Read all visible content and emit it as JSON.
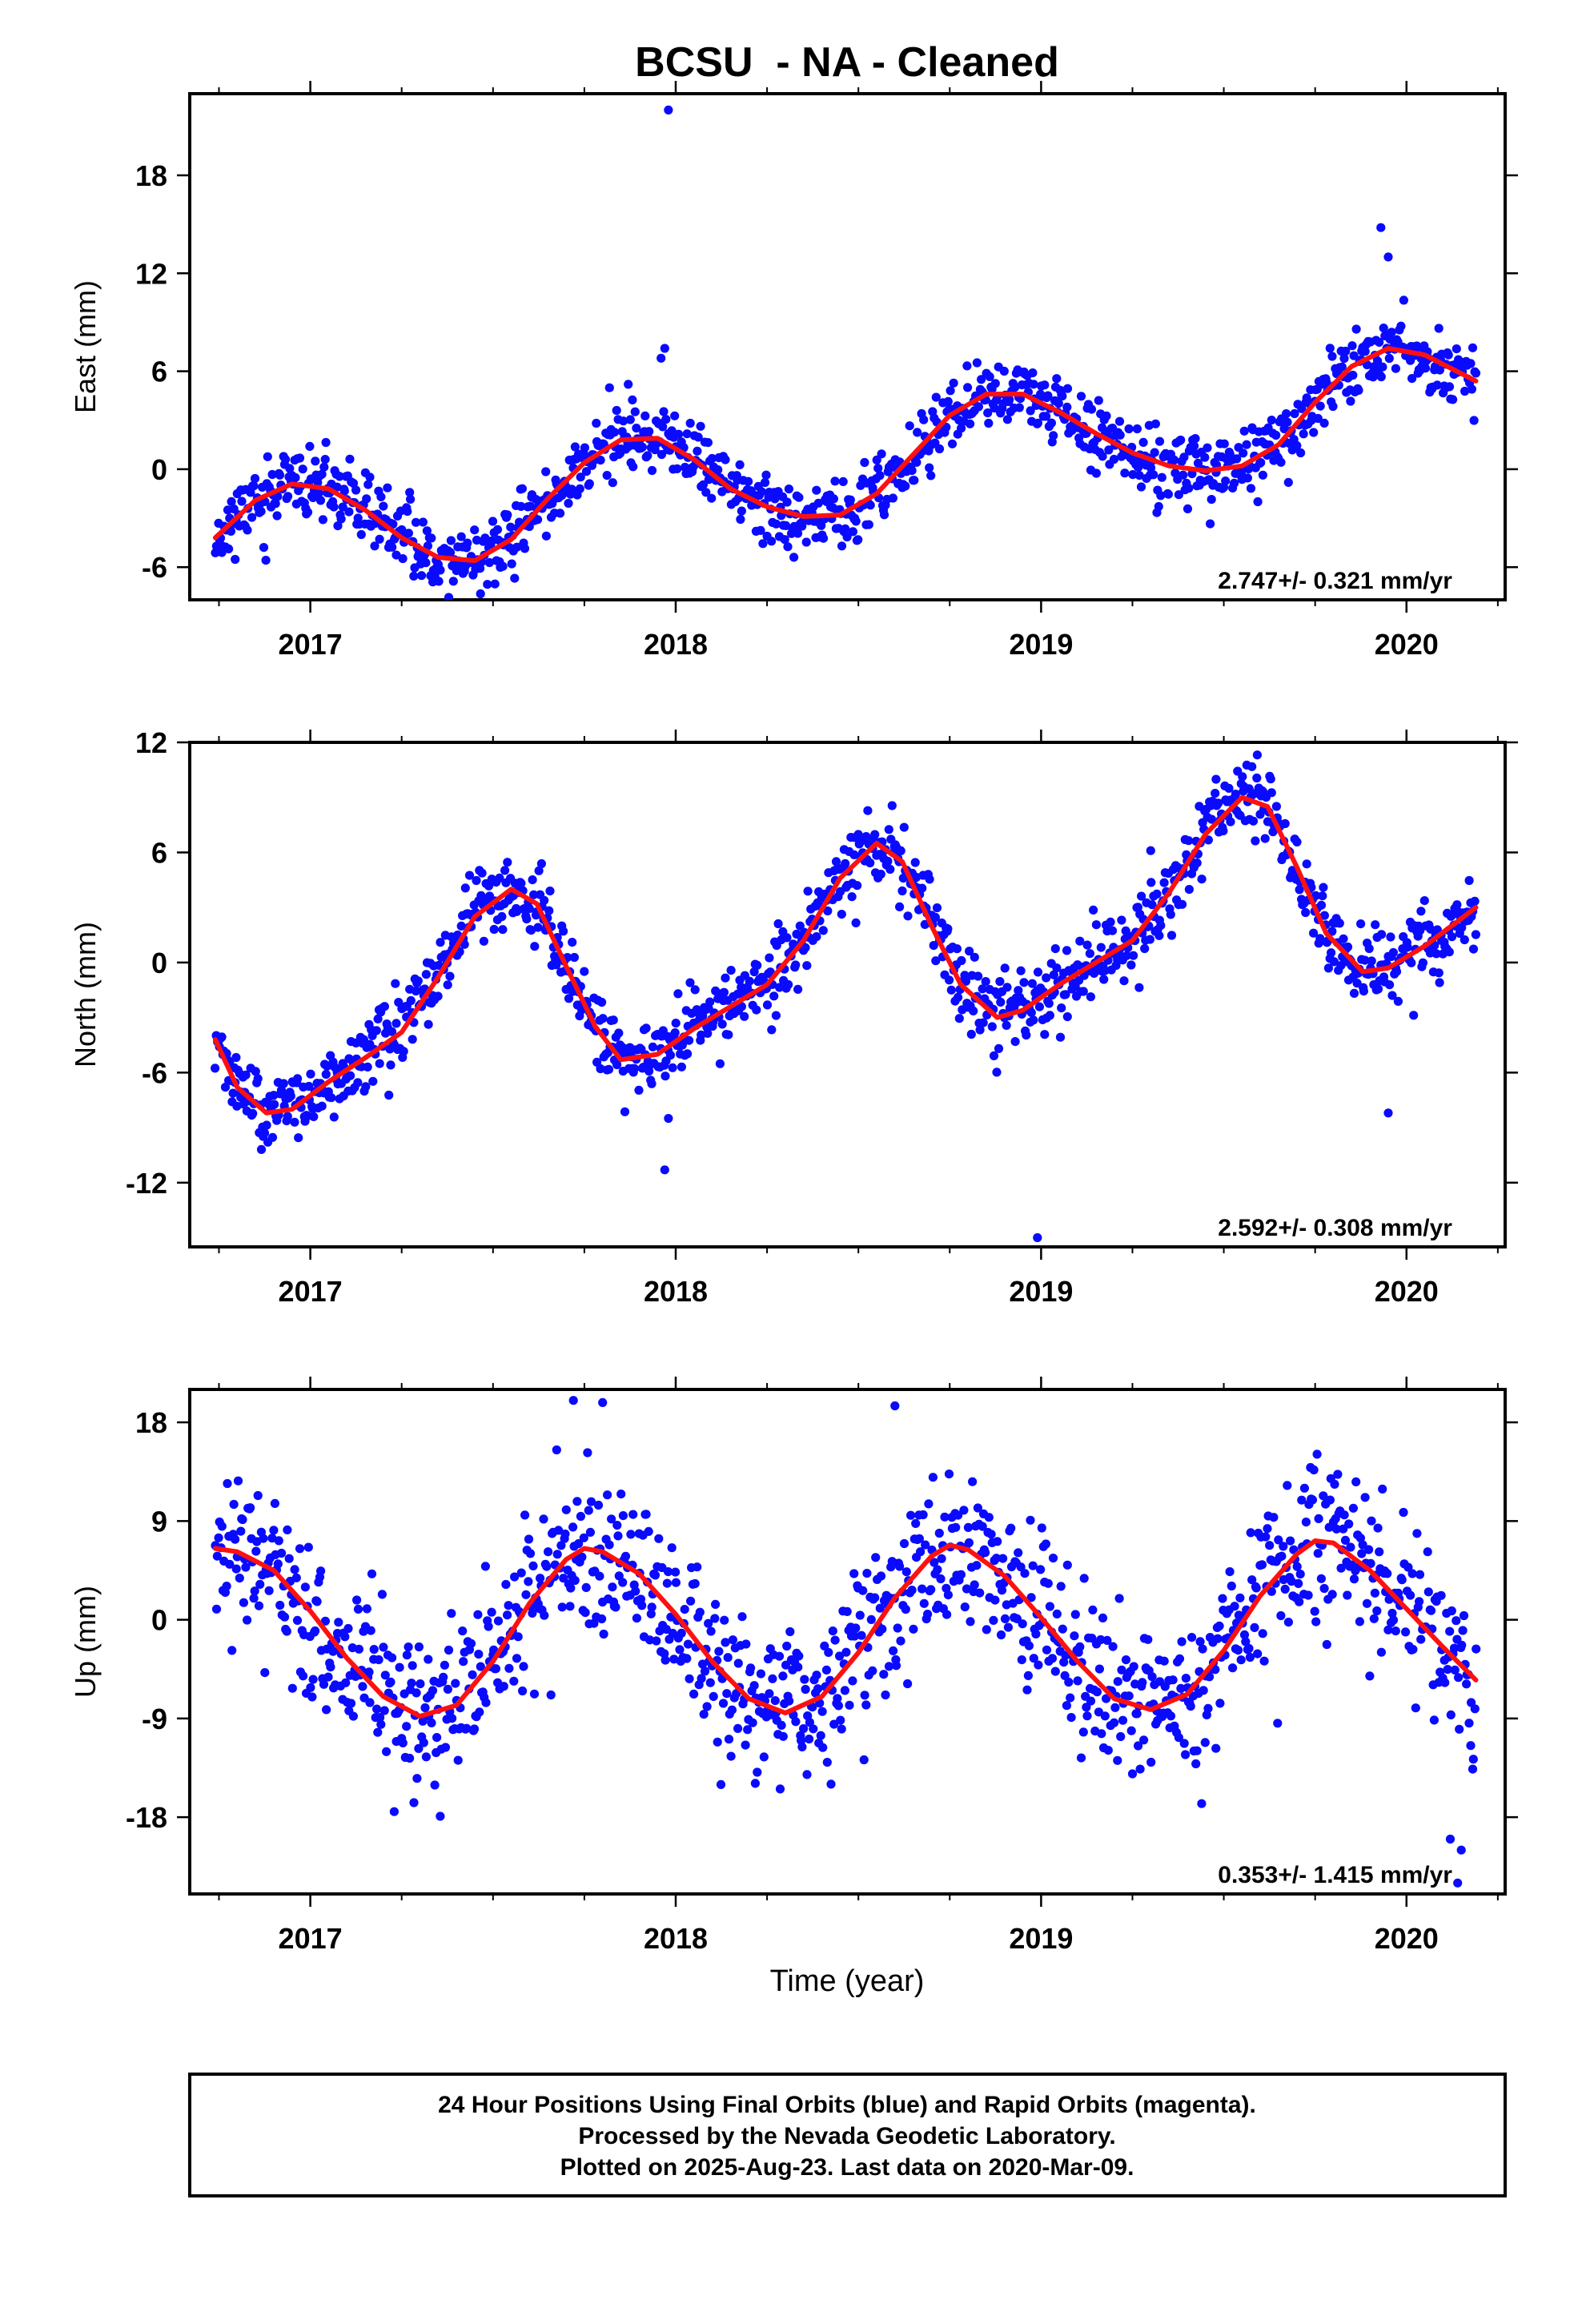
{
  "figure": {
    "title": "BCSU  - NA - Cleaned",
    "xlabel": "Time (year)",
    "footer": [
      "24 Hour Positions Using Final Orbits (blue) and Rapid Orbits (magenta).",
      "Processed by the Nevada Geodetic Laboratory.",
      "Plotted on 2025-Aug-23. Last data on 2020-Mar-09."
    ],
    "colors": {
      "points": "#0a0aff",
      "fit": "#ff1010",
      "axes": "#000000"
    }
  },
  "chart_data": [
    {
      "type": "scatter",
      "title": "BCSU  - NA - Cleaned",
      "ylabel": "East (mm)",
      "xlabel": "",
      "xlim": [
        2016.67,
        2020.27
      ],
      "ylim": [
        -8,
        23
      ],
      "xticks": [
        2017,
        2018,
        2019,
        2020
      ],
      "xtick_labels": [
        "2017",
        "2018",
        "2019",
        "2020"
      ],
      "yticks": [
        -6,
        0,
        6,
        12,
        18
      ],
      "ytick_labels": [
        "-6",
        "0",
        "6",
        "12",
        "18"
      ],
      "rate_label": "2.747+/- 0.321 mm/yr",
      "data_range": [
        2016.74,
        2020.19
      ],
      "fit_curve": {
        "x": [
          2016.74,
          2016.85,
          2016.95,
          2017.05,
          2017.15,
          2017.25,
          2017.35,
          2017.45,
          2017.55,
          2017.65,
          2017.75,
          2017.85,
          2017.95,
          2018.05,
          2018.15,
          2018.25,
          2018.35,
          2018.45,
          2018.55,
          2018.65,
          2018.75,
          2018.85,
          2018.95,
          2019.05,
          2019.15,
          2019.25,
          2019.35,
          2019.45,
          2019.55,
          2019.65,
          2019.75,
          2019.85,
          2019.95,
          2020.05,
          2020.19
        ],
        "y": [
          -4.2,
          -1.9,
          -0.9,
          -1.2,
          -2.5,
          -4.2,
          -5.4,
          -5.6,
          -4.3,
          -1.8,
          0.4,
          1.8,
          1.9,
          0.6,
          -1.2,
          -2.3,
          -2.9,
          -2.8,
          -1.5,
          0.9,
          3.3,
          4.6,
          4.6,
          3.5,
          2.2,
          1.0,
          0.2,
          -0.1,
          0.2,
          1.5,
          4.1,
          6.3,
          7.4,
          7.0,
          5.4
        ]
      },
      "outliers": {
        "x": [
          2017.98,
          2017.97,
          2017.96,
          2017.87,
          2019.93,
          2019.95
        ],
        "y": [
          22.0,
          7.4,
          6.8,
          5.2,
          14.8,
          13.0
        ]
      },
      "noise_sd": 1.05,
      "n_points": 1150,
      "seed": 11
    },
    {
      "type": "scatter",
      "ylabel": "North (mm)",
      "xlabel": "",
      "xlim": [
        2016.67,
        2020.27
      ],
      "ylim": [
        -15.5,
        12
      ],
      "xticks": [
        2017,
        2018,
        2019,
        2020
      ],
      "xtick_labels": [
        "2017",
        "2018",
        "2019",
        "2020"
      ],
      "yticks": [
        -12,
        -6,
        0,
        6,
        12
      ],
      "ytick_labels": [
        "-12",
        "-6",
        "0",
        "6",
        "12"
      ],
      "rate_label": "2.592+/- 0.308 mm/yr",
      "data_range": [
        2016.74,
        2020.19
      ],
      "fit_curve": {
        "x": [
          2016.74,
          2016.8,
          2016.88,
          2016.95,
          2017.05,
          2017.15,
          2017.25,
          2017.35,
          2017.45,
          2017.55,
          2017.62,
          2017.7,
          2017.78,
          2017.85,
          2017.95,
          2018.05,
          2018.15,
          2018.25,
          2018.35,
          2018.45,
          2018.55,
          2018.62,
          2018.7,
          2018.78,
          2018.88,
          2018.95,
          2019.05,
          2019.15,
          2019.25,
          2019.35,
          2019.45,
          2019.55,
          2019.62,
          2019.7,
          2019.78,
          2019.88,
          2019.95,
          2020.05,
          2020.19
        ],
        "y": [
          -4.2,
          -6.8,
          -8.2,
          -8.0,
          -6.5,
          -5.2,
          -3.8,
          -0.8,
          2.5,
          4.0,
          3.2,
          -0.2,
          -3.5,
          -5.3,
          -5.0,
          -3.6,
          -2.4,
          -1.2,
          1.2,
          4.6,
          6.5,
          5.5,
          2.0,
          -1.2,
          -3.0,
          -2.6,
          -1.2,
          0.0,
          1.2,
          3.8,
          7.0,
          9.0,
          8.5,
          5.2,
          1.6,
          -0.5,
          -0.3,
          0.9,
          3.0
        ]
      },
      "outliers": {
        "x": [
          2018.99,
          2017.97,
          2019.95,
          2017.98,
          2019.3
        ],
        "y": [
          -15.0,
          -11.3,
          -8.2,
          -8.5,
          6.1
        ]
      },
      "noise_sd": 1.0,
      "n_points": 1150,
      "seed": 23
    },
    {
      "type": "scatter",
      "ylabel": "Up (mm)",
      "xlabel": "Time (year)",
      "xlim": [
        2016.67,
        2020.27
      ],
      "ylim": [
        -25,
        21
      ],
      "xticks": [
        2017,
        2018,
        2019,
        2020
      ],
      "xtick_labels": [
        "2017",
        "2018",
        "2019",
        "2020"
      ],
      "yticks": [
        -18,
        -9,
        0,
        9,
        18
      ],
      "ytick_labels": [
        "-18",
        "-9",
        "0",
        "9",
        "18"
      ],
      "rate_label": "0.353+/- 1.415 mm/yr",
      "data_range": [
        2016.74,
        2020.19
      ],
      "fit_curve": {
        "x": [
          2016.74,
          2016.8,
          2016.9,
          2017.0,
          2017.1,
          2017.2,
          2017.3,
          2017.4,
          2017.5,
          2017.6,
          2017.7,
          2017.75,
          2017.8,
          2017.9,
          2018.0,
          2018.1,
          2018.2,
          2018.3,
          2018.4,
          2018.5,
          2018.6,
          2018.7,
          2018.75,
          2018.8,
          2018.9,
          2019.0,
          2019.1,
          2019.2,
          2019.3,
          2019.4,
          2019.5,
          2019.6,
          2019.7,
          2019.75,
          2019.8,
          2019.9,
          2020.0,
          2020.1,
          2020.19
        ],
        "y": [
          6.5,
          6.2,
          4.5,
          0.8,
          -3.5,
          -7.0,
          -8.8,
          -7.8,
          -3.8,
          1.5,
          5.5,
          6.5,
          6.2,
          4.2,
          0.5,
          -3.8,
          -7.2,
          -8.5,
          -7.0,
          -3.0,
          2.0,
          5.8,
          6.8,
          6.4,
          4.0,
          0.2,
          -3.8,
          -7.2,
          -8.2,
          -6.8,
          -2.8,
          2.2,
          6.0,
          7.2,
          7.0,
          4.5,
          1.0,
          -2.5,
          -5.5
        ]
      },
      "outliers": {
        "x": [
          2017.72,
          2017.8,
          2018.6,
          2020.14,
          2020.15,
          2020.12
        ],
        "y": [
          20.0,
          19.8,
          19.5,
          -24.0,
          -21.0,
          -20.0
        ]
      },
      "noise_sd": 3.6,
      "n_points": 1150,
      "seed": 37
    }
  ]
}
